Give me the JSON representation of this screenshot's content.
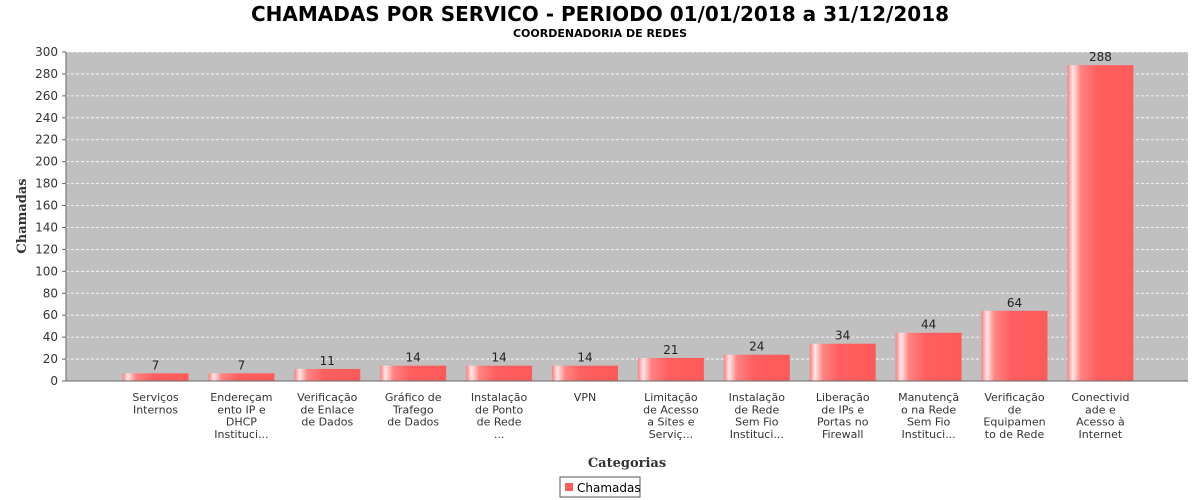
{
  "chart_data": {
    "type": "bar",
    "title": "CHAMADAS POR SERVICO - PERIODO 01/01/2018 a 31/12/2018",
    "subtitle": "COORDENADORIA DE REDES",
    "xlabel": "Categorias",
    "ylabel": "Chamadas",
    "ylim": [
      0,
      300
    ],
    "yticks": [
      0,
      20,
      40,
      60,
      80,
      100,
      120,
      140,
      160,
      180,
      200,
      220,
      240,
      260,
      280,
      300
    ],
    "grid": true,
    "legend_position": "bottom",
    "categories": [
      [
        "Serviços",
        "Internos"
      ],
      [
        "Endereçam",
        "ento IP e",
        "DHCP",
        "Instituci..."
      ],
      [
        "Verificação",
        "de Enlace",
        "de Dados"
      ],
      [
        "Gráfico de",
        "Trafego",
        "de Dados"
      ],
      [
        "Instalação",
        "de Ponto",
        "de Rede",
        "..."
      ],
      [
        "VPN"
      ],
      [
        "Limitação",
        "de Acesso",
        "a Sites e",
        "Serviç..."
      ],
      [
        "Instalação",
        "de Rede",
        "Sem Fio",
        "Instituci..."
      ],
      [
        "Liberação",
        "de IPs e",
        "Portas no",
        "Firewall"
      ],
      [
        "Manutençã",
        "o na Rede",
        "Sem Fio",
        "Instituci..."
      ],
      [
        "Verificação",
        "de",
        "Equipamen",
        "to de Rede"
      ],
      [
        "Conectivid",
        "ade e",
        "Acesso à",
        "Internet"
      ]
    ],
    "series": [
      {
        "name": "Chamadas",
        "color": "#ff5f5f",
        "values": [
          7,
          7,
          11,
          14,
          14,
          14,
          21,
          24,
          34,
          44,
          64,
          288
        ]
      }
    ],
    "plot_background": "#c0c0c0"
  }
}
